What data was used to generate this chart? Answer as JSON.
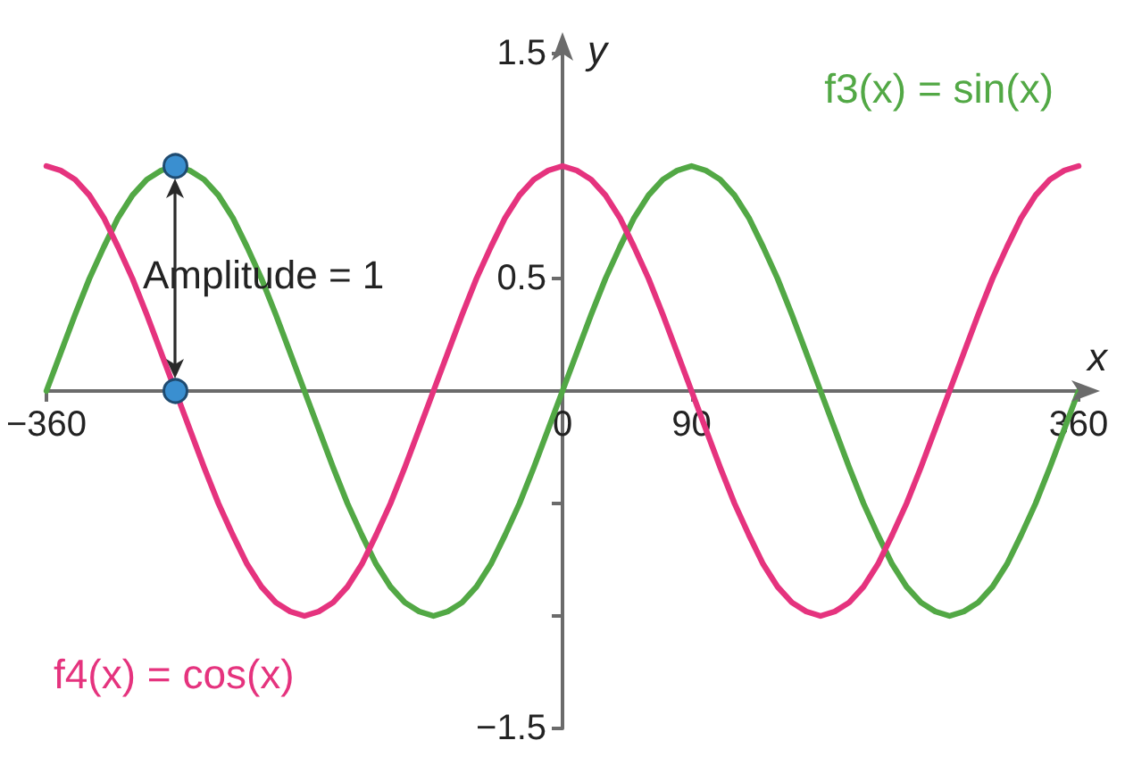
{
  "chart_data": {
    "type": "line",
    "xlabel": "x",
    "ylabel": "y",
    "x": [
      -360,
      -350,
      -340,
      -330,
      -320,
      -310,
      -300,
      -290,
      -280,
      -270,
      -260,
      -250,
      -240,
      -230,
      -220,
      -210,
      -200,
      -190,
      -180,
      -170,
      -160,
      -150,
      -140,
      -130,
      -120,
      -110,
      -100,
      -90,
      -80,
      -70,
      -60,
      -50,
      -40,
      -30,
      -20,
      -10,
      0,
      10,
      20,
      30,
      40,
      50,
      60,
      70,
      80,
      90,
      100,
      110,
      120,
      130,
      140,
      150,
      160,
      170,
      180,
      190,
      200,
      210,
      220,
      230,
      240,
      250,
      260,
      270,
      280,
      290,
      300,
      310,
      320,
      330,
      340,
      350,
      360
    ],
    "xlim": [
      -360,
      360
    ],
    "xticks": [
      {
        "value": -360,
        "label": "−360"
      },
      0,
      90,
      360
    ],
    "ylim": [
      -1.5,
      1.5
    ],
    "yticks": [
      {
        "value": -1.5,
        "label": "−1.5"
      },
      {
        "value": -1,
        "label": null
      },
      {
        "value": -0.5,
        "label": null
      },
      0.5,
      1.5
    ],
    "marker": "none",
    "series": [
      {
        "name": "f3(x) = sin(x)",
        "color": "#52a845",
        "values": [
          0,
          0.17,
          0.34,
          0.5,
          0.64,
          0.77,
          0.87,
          0.94,
          0.98,
          1,
          0.98,
          0.94,
          0.87,
          0.77,
          0.64,
          0.5,
          0.34,
          0.17,
          0,
          -0.17,
          -0.34,
          -0.5,
          -0.64,
          -0.77,
          -0.87,
          -0.94,
          -0.98,
          -1,
          -0.98,
          -0.94,
          -0.87,
          -0.77,
          -0.64,
          -0.5,
          -0.34,
          -0.17,
          0,
          0.17,
          0.34,
          0.5,
          0.64,
          0.77,
          0.87,
          0.94,
          0.98,
          1,
          0.98,
          0.94,
          0.87,
          0.77,
          0.64,
          0.5,
          0.34,
          0.17,
          0,
          -0.17,
          -0.34,
          -0.5,
          -0.64,
          -0.77,
          -0.87,
          -0.94,
          -0.98,
          -1,
          -0.98,
          -0.94,
          -0.87,
          -0.77,
          -0.64,
          -0.5,
          -0.34,
          -0.17,
          0
        ]
      },
      {
        "name": "f4(x) = cos(x)",
        "color": "#e5337e",
        "values": [
          1,
          0.98,
          0.94,
          0.87,
          0.77,
          0.64,
          0.5,
          0.34,
          0.17,
          0,
          -0.17,
          -0.34,
          -0.5,
          -0.64,
          -0.77,
          -0.87,
          -0.94,
          -0.98,
          -1,
          -0.98,
          -0.94,
          -0.87,
          -0.77,
          -0.64,
          -0.5,
          -0.34,
          -0.17,
          0,
          0.17,
          0.34,
          0.5,
          0.64,
          0.77,
          0.87,
          0.94,
          0.98,
          1,
          0.98,
          0.94,
          0.87,
          0.77,
          0.64,
          0.5,
          0.34,
          0.17,
          0,
          -0.17,
          -0.34,
          -0.5,
          -0.64,
          -0.77,
          -0.87,
          -0.94,
          -0.98,
          -1,
          -0.98,
          -0.94,
          -0.87,
          -0.77,
          -0.64,
          -0.5,
          -0.34,
          -0.17,
          0,
          0.17,
          0.34,
          0.5,
          0.64,
          0.77,
          0.87,
          0.94,
          0.98,
          1
        ]
      },
      {
        "type": "scatter",
        "color": "#3a8fd0",
        "marker": "circle",
        "x": [
          -270,
          -270
        ],
        "values": [
          1,
          0
        ]
      }
    ],
    "annotations": [
      "Amplitude = 1"
    ]
  }
}
